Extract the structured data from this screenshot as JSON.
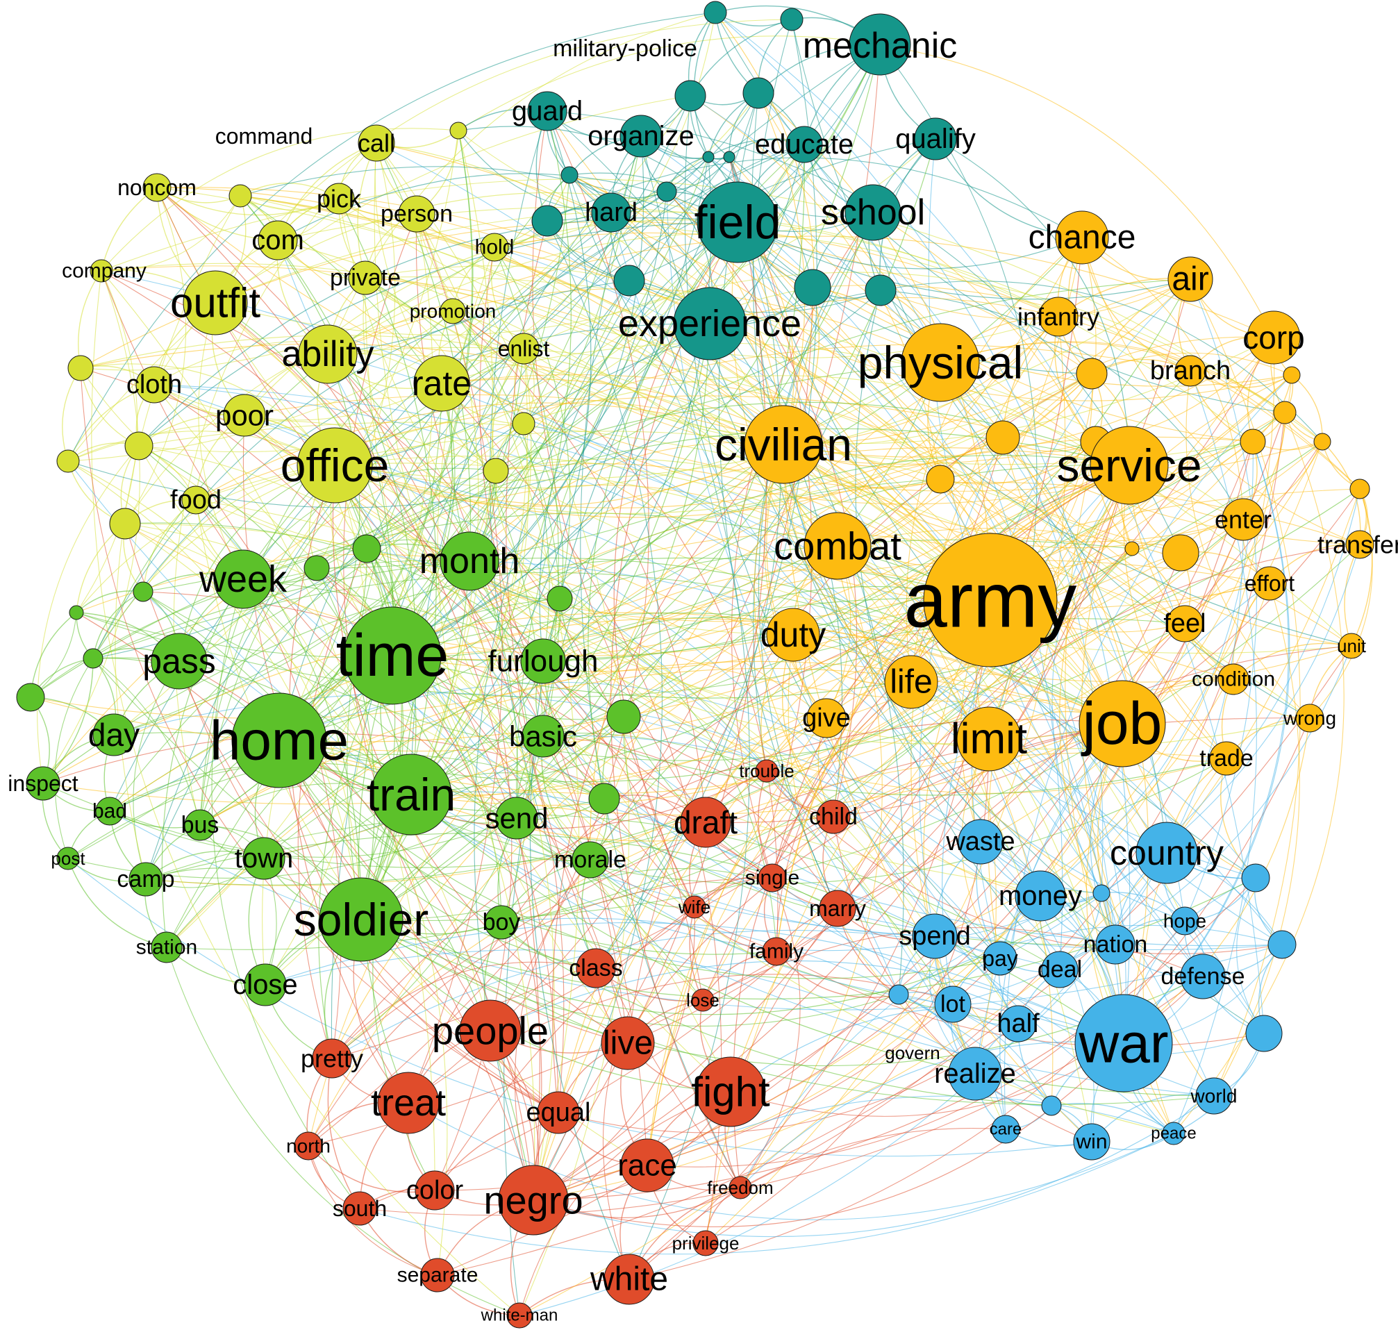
{
  "palette": {
    "teal": "#15968a",
    "yellow": "#d6e033",
    "green": "#5cc12a",
    "orange": "#fdbb10",
    "red": "#e04c2b",
    "blue": "#44b3e8",
    "red_light": "#ea6a36"
  },
  "clusters": [
    {
      "name": "teal",
      "color_key": "teal",
      "hub": "field"
    },
    {
      "name": "yellow",
      "color_key": "yellow",
      "hub": "outfit"
    },
    {
      "name": "green",
      "color_key": "green",
      "hub": "time"
    },
    {
      "name": "orange",
      "color_key": "orange",
      "hub": "army"
    },
    {
      "name": "red",
      "color_key": "red",
      "hub": "negro"
    },
    {
      "name": "blue",
      "color_key": "blue",
      "hub": "war"
    }
  ],
  "nodes": [
    {
      "label": "military-police",
      "cluster": "teal",
      "weight": 1
    },
    {
      "label": "mechanic",
      "cluster": "teal",
      "weight": 3
    },
    {
      "label": "guard",
      "cluster": "teal",
      "weight": 2
    },
    {
      "label": "organize",
      "cluster": "teal",
      "weight": 3
    },
    {
      "label": "educate",
      "cluster": "teal",
      "weight": 3
    },
    {
      "label": "qualify",
      "cluster": "teal",
      "weight": 3
    },
    {
      "label": "hard",
      "cluster": "teal",
      "weight": 3
    },
    {
      "label": "field",
      "cluster": "teal",
      "weight": 5
    },
    {
      "label": "school",
      "cluster": "teal",
      "weight": 4
    },
    {
      "label": "experience",
      "cluster": "teal",
      "weight": 5
    },
    {
      "label": "command",
      "cluster": "yellow",
      "weight": 1
    },
    {
      "label": "call",
      "cluster": "yellow",
      "weight": 2
    },
    {
      "label": "noncom",
      "cluster": "yellow",
      "weight": 2
    },
    {
      "label": "pick",
      "cluster": "yellow",
      "weight": 2
    },
    {
      "label": "person",
      "cluster": "yellow",
      "weight": 2
    },
    {
      "label": "com",
      "cluster": "yellow",
      "weight": 2
    },
    {
      "label": "hold",
      "cluster": "yellow",
      "weight": 1
    },
    {
      "label": "company",
      "cluster": "yellow",
      "weight": 2
    },
    {
      "label": "private",
      "cluster": "yellow",
      "weight": 2
    },
    {
      "label": "promotion",
      "cluster": "yellow",
      "weight": 1
    },
    {
      "label": "outfit",
      "cluster": "yellow",
      "weight": 4
    },
    {
      "label": "ability",
      "cluster": "yellow",
      "weight": 4
    },
    {
      "label": "enlist",
      "cluster": "yellow",
      "weight": 2
    },
    {
      "label": "cloth",
      "cluster": "yellow",
      "weight": 2
    },
    {
      "label": "rate",
      "cluster": "yellow",
      "weight": 3
    },
    {
      "label": "poor",
      "cluster": "yellow",
      "weight": 3
    },
    {
      "label": "office",
      "cluster": "yellow",
      "weight": 5
    },
    {
      "label": "food",
      "cluster": "yellow",
      "weight": 2
    },
    {
      "label": "week",
      "cluster": "green",
      "weight": 4
    },
    {
      "label": "month",
      "cluster": "green",
      "weight": 4
    },
    {
      "label": "time",
      "cluster": "green",
      "weight": 6
    },
    {
      "label": "pass",
      "cluster": "green",
      "weight": 3
    },
    {
      "label": "furlough",
      "cluster": "green",
      "weight": 3
    },
    {
      "label": "home",
      "cluster": "green",
      "weight": 6
    },
    {
      "label": "day",
      "cluster": "green",
      "weight": 3
    },
    {
      "label": "basic",
      "cluster": "green",
      "weight": 3
    },
    {
      "label": "train",
      "cluster": "green",
      "weight": 5
    },
    {
      "label": "inspect",
      "cluster": "green",
      "weight": 2
    },
    {
      "label": "bad",
      "cluster": "green",
      "weight": 2
    },
    {
      "label": "bus",
      "cluster": "green",
      "weight": 2
    },
    {
      "label": "send",
      "cluster": "green",
      "weight": 3
    },
    {
      "label": "post",
      "cluster": "green",
      "weight": 1
    },
    {
      "label": "town",
      "cluster": "green",
      "weight": 3
    },
    {
      "label": "camp",
      "cluster": "green",
      "weight": 2
    },
    {
      "label": "morale",
      "cluster": "green",
      "weight": 2
    },
    {
      "label": "soldier",
      "cluster": "green",
      "weight": 5
    },
    {
      "label": "boy",
      "cluster": "green",
      "weight": 2
    },
    {
      "label": "station",
      "cluster": "green",
      "weight": 2
    },
    {
      "label": "close",
      "cluster": "green",
      "weight": 3
    },
    {
      "label": "chance",
      "cluster": "orange",
      "weight": 3
    },
    {
      "label": "air",
      "cluster": "orange",
      "weight": 3
    },
    {
      "label": "infantry",
      "cluster": "orange",
      "weight": 2
    },
    {
      "label": "corp",
      "cluster": "orange",
      "weight": 3
    },
    {
      "label": "physical",
      "cluster": "orange",
      "weight": 5
    },
    {
      "label": "branch",
      "cluster": "orange",
      "weight": 2
    },
    {
      "label": "civilian",
      "cluster": "orange",
      "weight": 5
    },
    {
      "label": "service",
      "cluster": "orange",
      "weight": 5
    },
    {
      "label": "enter",
      "cluster": "orange",
      "weight": 2
    },
    {
      "label": "combat",
      "cluster": "orange",
      "weight": 4
    },
    {
      "label": "transfer",
      "cluster": "orange",
      "weight": 2
    },
    {
      "label": "army",
      "cluster": "orange",
      "weight": 8
    },
    {
      "label": "effort",
      "cluster": "orange",
      "weight": 2
    },
    {
      "label": "feel",
      "cluster": "orange",
      "weight": 2
    },
    {
      "label": "duty",
      "cluster": "orange",
      "weight": 3
    },
    {
      "label": "unit",
      "cluster": "orange",
      "weight": 1
    },
    {
      "label": "life",
      "cluster": "orange",
      "weight": 3
    },
    {
      "label": "condition",
      "cluster": "orange",
      "weight": 2
    },
    {
      "label": "job",
      "cluster": "orange",
      "weight": 5
    },
    {
      "label": "give",
      "cluster": "orange",
      "weight": 2
    },
    {
      "label": "wrong",
      "cluster": "orange",
      "weight": 1
    },
    {
      "label": "limit",
      "cluster": "orange",
      "weight": 4
    },
    {
      "label": "trade",
      "cluster": "orange",
      "weight": 2
    },
    {
      "label": "trouble",
      "cluster": "red",
      "weight": 1
    },
    {
      "label": "draft",
      "cluster": "red",
      "weight": 3
    },
    {
      "label": "child",
      "cluster": "red",
      "weight": 2
    },
    {
      "label": "single",
      "cluster": "red",
      "weight": 2
    },
    {
      "label": "wife",
      "cluster": "red",
      "weight": 1
    },
    {
      "label": "marry",
      "cluster": "red",
      "weight": 2
    },
    {
      "label": "family",
      "cluster": "red",
      "weight": 2
    },
    {
      "label": "class",
      "cluster": "red",
      "weight": 2
    },
    {
      "label": "lose",
      "cluster": "red",
      "weight": 1
    },
    {
      "label": "people",
      "cluster": "red",
      "weight": 4
    },
    {
      "label": "live",
      "cluster": "red",
      "weight": 3
    },
    {
      "label": "pretty",
      "cluster": "red",
      "weight": 2
    },
    {
      "label": "fight",
      "cluster": "red",
      "weight": 4
    },
    {
      "label": "treat",
      "cluster": "red",
      "weight": 4
    },
    {
      "label": "equal",
      "cluster": "red",
      "weight": 2
    },
    {
      "label": "north",
      "cluster": "red",
      "weight": 1
    },
    {
      "label": "race",
      "cluster": "red",
      "weight": 3
    },
    {
      "label": "freedom",
      "cluster": "red",
      "weight": 1
    },
    {
      "label": "color",
      "cluster": "red",
      "weight": 2
    },
    {
      "label": "negro",
      "cluster": "red",
      "weight": 4
    },
    {
      "label": "south",
      "cluster": "red",
      "weight": 2
    },
    {
      "label": "privilege",
      "cluster": "red",
      "weight": 1
    },
    {
      "label": "separate",
      "cluster": "red",
      "weight": 2
    },
    {
      "label": "white",
      "cluster": "red",
      "weight": 3
    },
    {
      "label": "white-man",
      "cluster": "red",
      "weight": 1
    },
    {
      "label": "waste",
      "cluster": "blue",
      "weight": 2
    },
    {
      "label": "country",
      "cluster": "blue",
      "weight": 3
    },
    {
      "label": "money",
      "cluster": "blue",
      "weight": 3
    },
    {
      "label": "hope",
      "cluster": "blue",
      "weight": 1
    },
    {
      "label": "spend",
      "cluster": "blue",
      "weight": 2
    },
    {
      "label": "nation",
      "cluster": "blue",
      "weight": 2
    },
    {
      "label": "pay",
      "cluster": "blue",
      "weight": 2
    },
    {
      "label": "deal",
      "cluster": "blue",
      "weight": 2
    },
    {
      "label": "defense",
      "cluster": "blue",
      "weight": 2
    },
    {
      "label": "lot",
      "cluster": "blue",
      "weight": 2
    },
    {
      "label": "half",
      "cluster": "blue",
      "weight": 2
    },
    {
      "label": "war",
      "cluster": "blue",
      "weight": 5
    },
    {
      "label": "govern",
      "cluster": "blue",
      "weight": 1
    },
    {
      "label": "realize",
      "cluster": "blue",
      "weight": 2
    },
    {
      "label": "world",
      "cluster": "blue",
      "weight": 2
    },
    {
      "label": "care",
      "cluster": "blue",
      "weight": 1
    },
    {
      "label": "win",
      "cluster": "blue",
      "weight": 2
    },
    {
      "label": "peace",
      "cluster": "blue",
      "weight": 1
    }
  ]
}
